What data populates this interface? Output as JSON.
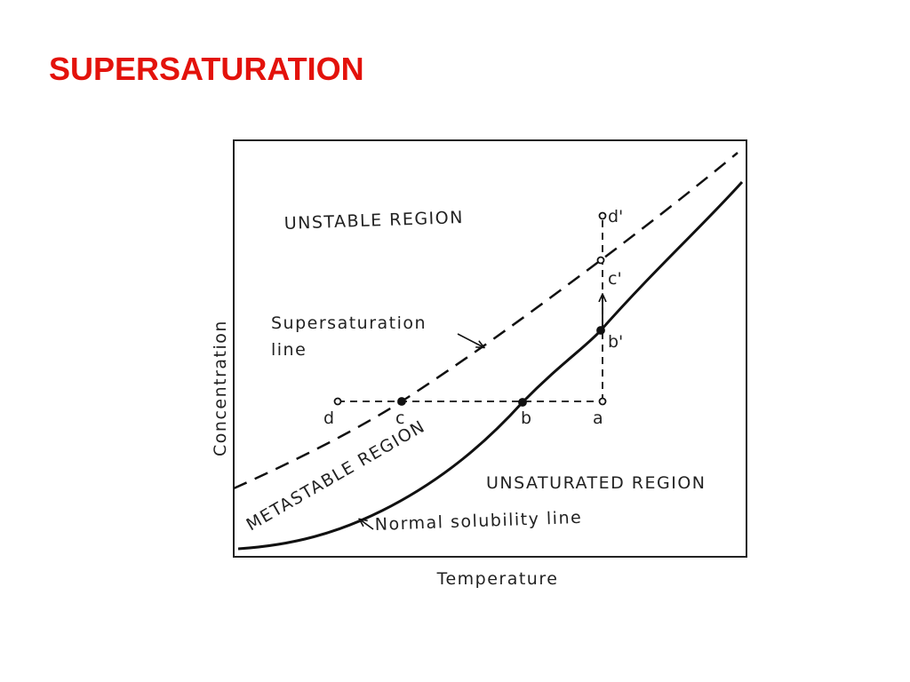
{
  "title": "SUPERSATURATION",
  "diagram": {
    "y_axis_label": "Concentration",
    "x_axis_label": "Temperature",
    "regions": {
      "unstable": "UNSTABLE REGION",
      "metastable": "METASTABLE REGION",
      "unsaturated": "UNSATURATED REGION"
    },
    "supersaturation_line_label": [
      "Supersaturation",
      "line"
    ],
    "solubility_line_label": "Normal solubility line",
    "points": {
      "d": "d",
      "c": "c",
      "b": "b",
      "a": "a",
      "d_prime": "d'",
      "c_prime": "c'",
      "b_prime": "b'"
    }
  }
}
